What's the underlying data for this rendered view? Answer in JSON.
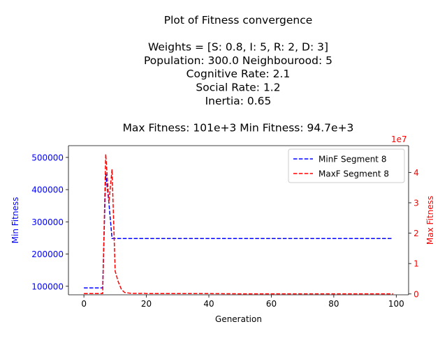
{
  "title_lines": [
    "Plot of Fitness convergence",
    "",
    "Weights = [S: 0.8, I: 5, R: 2, D: 3]",
    "Population: 300.0  Neighbourood: 5",
    "Cognitive Rate: 2.1",
    "Social Rate: 1.2",
    "Inertia: 0.65",
    "",
    "Max Fitness: 101e+3 Min Fitness: 94.7e+3"
  ],
  "colors": {
    "left_axis": "#0000ff",
    "right_axis": "#ff0000",
    "minf": "#0000ff",
    "maxf": "#ff0000"
  },
  "chart_data": {
    "type": "line",
    "xlabel": "Generation",
    "ylabel_left": "Min Fitness",
    "ylabel_right": "Max Fitness",
    "right_offset_label": "1e7",
    "xlim": [
      -4.95,
      103.95
    ],
    "ylim_left": [
      73500,
      536500
    ],
    "ylim_right": [
      -280000,
      48800000
    ],
    "x_ticks": [
      0,
      20,
      40,
      60,
      80,
      100
    ],
    "y_ticks_left": [
      100000,
      200000,
      300000,
      400000,
      500000
    ],
    "y_ticks_right": [
      0,
      10000000,
      20000000,
      30000000,
      40000000
    ],
    "y_tick_labels_right": [
      "0",
      "1",
      "2",
      "3",
      "4"
    ],
    "legend_position": "upper-right",
    "series": [
      {
        "name": "MinF Segment 8",
        "axis": "left",
        "style": "dashed",
        "x": [
          0,
          6,
          7,
          8,
          9,
          10,
          15,
          20,
          30,
          40,
          50,
          60,
          70,
          80,
          90,
          99
        ],
        "y": [
          95000,
          95000,
          450000,
          360000,
          248000,
          248000,
          248000,
          248000,
          248000,
          248000,
          248000,
          248000,
          248000,
          248000,
          248000,
          248000
        ]
      },
      {
        "name": "MaxF Segment 8",
        "axis": "right",
        "style": "dashed",
        "x": [
          0,
          5,
          6,
          7,
          8,
          9,
          10,
          11,
          12,
          13,
          15,
          18,
          19,
          20,
          30,
          40,
          50,
          60,
          70,
          80,
          90,
          99
        ],
        "y": [
          100000,
          100000,
          100000,
          46000000,
          30000000,
          41000000,
          7500000,
          4000000,
          1500000,
          500000,
          200000,
          150000,
          250000,
          100000,
          100000,
          100000,
          50000,
          50000,
          50000,
          50000,
          50000,
          50000
        ]
      }
    ]
  }
}
